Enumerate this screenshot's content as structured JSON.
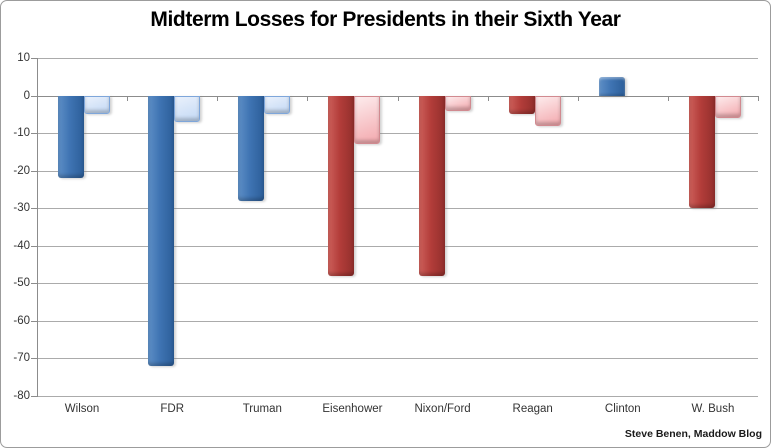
{
  "title": "Midterm Losses for Presidents in their Sixth Year",
  "attribution": "Steve Benen, Maddow Blog",
  "colors": {
    "dem_dark": "#3f74b3",
    "dem_light": "#cfe0f8",
    "rep_dark": "#b33d3a",
    "rep_light": "#f6bcc0",
    "gridline": "#ababab",
    "axis": "#8c8c8c",
    "frame_border": "#9c9c9c",
    "background": "#ffffff",
    "title_color": "#000000"
  },
  "chart_data": {
    "type": "bar",
    "title": "Midterm Losses for Presidents in their Sixth Year",
    "categories": [
      "Wilson",
      "FDR",
      "Truman",
      "Eisenhower",
      "Nixon/Ford",
      "Reagan",
      "Clinton",
      "W. Bush"
    ],
    "series": [
      {
        "name": "dark-bar-series",
        "values": [
          -22,
          -72,
          -28,
          -48,
          -48,
          -5,
          5,
          -30
        ]
      },
      {
        "name": "light-bar-series",
        "values": [
          -5,
          -7,
          -5,
          -13,
          -4,
          -8,
          0,
          -6
        ]
      }
    ],
    "category_color_theme": [
      "blue",
      "blue",
      "blue",
      "red",
      "red",
      "red",
      "blue",
      "red"
    ],
    "ylim": [
      -80,
      10
    ],
    "ytick_interval": 10,
    "yticklabels": [
      "10",
      "0",
      "-10",
      "-20",
      "-30",
      "-40",
      "-50",
      "-60",
      "-70",
      "-80"
    ],
    "grid": true,
    "legend": "none",
    "annotation": "Steve Benen, Maddow Blog"
  }
}
